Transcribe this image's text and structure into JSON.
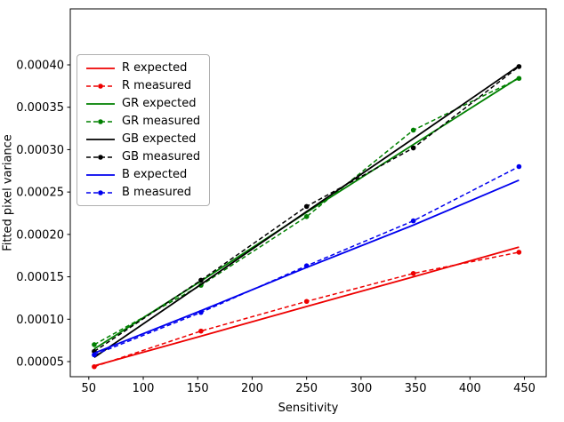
{
  "chart_data": {
    "type": "line",
    "title": "",
    "xlabel": "Sensitivity",
    "ylabel": "Fitted pixel variance",
    "x_ticks": [
      50,
      100,
      150,
      200,
      250,
      300,
      350,
      400,
      450
    ],
    "x_tick_labels": [
      "50",
      "100",
      "150",
      "200",
      "250",
      "300",
      "350",
      "400",
      "450"
    ],
    "y_ticks": [
      5e-05,
      0.0001,
      0.00015,
      0.0002,
      0.00025,
      0.0003,
      0.00035,
      0.0004
    ],
    "y_tick_labels": [
      "0.00005",
      "0.00010",
      "0.00015",
      "0.00020",
      "0.00025",
      "0.00030",
      "0.00035",
      "0.00040"
    ],
    "xlim": [
      33,
      470
    ],
    "ylim": [
      3.22e-05,
      0.000466
    ],
    "grid": false,
    "legend_position": "upper-left",
    "x": [
      55,
      153,
      250,
      348,
      445
    ],
    "series": [
      {
        "name": "R expected",
        "color": "#ee0000",
        "style": "solid",
        "values": [
          4.5e-05,
          8e-05,
          0.000115,
          0.00015,
          0.000185
        ]
      },
      {
        "name": "R measured",
        "color": "#ee0000",
        "style": "dashed-marker",
        "values": [
          4.4e-05,
          8.6e-05,
          0.000121,
          0.000154,
          0.000179
        ]
      },
      {
        "name": "GR expected",
        "color": "#008000",
        "style": "solid",
        "values": [
          6.5e-05,
          0.000145,
          0.000226,
          0.000306,
          0.000385
        ]
      },
      {
        "name": "GR measured",
        "color": "#008000",
        "style": "dashed-marker",
        "values": [
          7e-05,
          0.00014,
          0.000221,
          0.000323,
          0.000384
        ]
      },
      {
        "name": "GB expected",
        "color": "#000000",
        "style": "solid",
        "values": [
          5.5e-05,
          0.000141,
          0.000227,
          0.000313,
          0.000399
        ]
      },
      {
        "name": "GB measured",
        "color": "#000000",
        "style": "dashed-marker",
        "values": [
          6.2e-05,
          0.000146,
          0.000233,
          0.000302,
          0.000398
        ]
      },
      {
        "name": "B expected",
        "color": "#0000ee",
        "style": "solid",
        "values": [
          6e-05,
          0.00011,
          0.000161,
          0.000211,
          0.000264
        ]
      },
      {
        "name": "B measured",
        "color": "#0000ee",
        "style": "dashed-marker",
        "values": [
          5.8e-05,
          0.000108,
          0.000163,
          0.000216,
          0.00028
        ]
      }
    ]
  }
}
